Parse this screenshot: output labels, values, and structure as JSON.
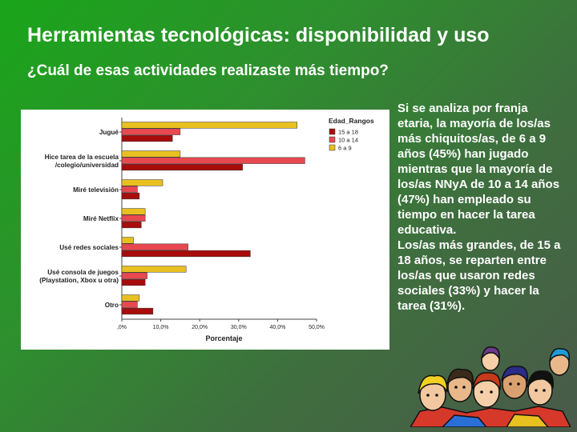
{
  "slide": {
    "title": "Herramientas tecnológicas: disponibilidad y uso",
    "subtitle": "¿Cuál de esas actividades realizaste más tiempo?",
    "paragraph1": "Si se analiza por franja etaria, la mayoría de los/as más chiquitos/as, de 6 a 9 años (45%) han jugado mientras que la mayoría de los/as NNyA de 10 a 14 años (47%) han empleado su tiempo en hacer la tarea educativa.",
    "paragraph2": "Los/as más grandes, de 15 a 18 años, se reparten entre los/as que usaron redes sociales (33%) y hacer la tarea (31%)."
  },
  "chart_data": {
    "type": "bar",
    "orientation": "horizontal",
    "categories": [
      [
        "Jugué"
      ],
      [
        "Hice tarea de la escuela",
        "/colegio/universidad"
      ],
      [
        "Miré televisión"
      ],
      [
        "Miré Netflix"
      ],
      [
        "Usé redes sociales"
      ],
      [
        "Usé consola de juegos",
        "(Playstation, Xbox u otra)"
      ],
      [
        "Otro"
      ]
    ],
    "series": [
      {
        "name": "6 a 9",
        "color": "#e8c020",
        "values": [
          45,
          15,
          10.5,
          6,
          3,
          16.5,
          4.5
        ]
      },
      {
        "name": "10 a 14",
        "color": "#e84850",
        "values": [
          15,
          47,
          4,
          6,
          17,
          6.5,
          4
        ]
      },
      {
        "name": "15 a 18",
        "color": "#a80c0c",
        "values": [
          13,
          31,
          4.5,
          5,
          33,
          6,
          8
        ]
      }
    ],
    "xlabel": "Porcentaje",
    "xlim": [
      0,
      50
    ],
    "xticks": [
      ",0%",
      "10,0%",
      "20,0%",
      "30,0%",
      "40,0%",
      "50,0%"
    ],
    "legend": {
      "title": "Edad_Rangos",
      "position": "top-right",
      "entries": [
        {
          "label": "15 a 18",
          "color": "#a80c0c"
        },
        {
          "label": "10 a 14",
          "color": "#e84850"
        },
        {
          "label": "6 a 9",
          "color": "#e8c020"
        }
      ]
    },
    "grid": false
  }
}
